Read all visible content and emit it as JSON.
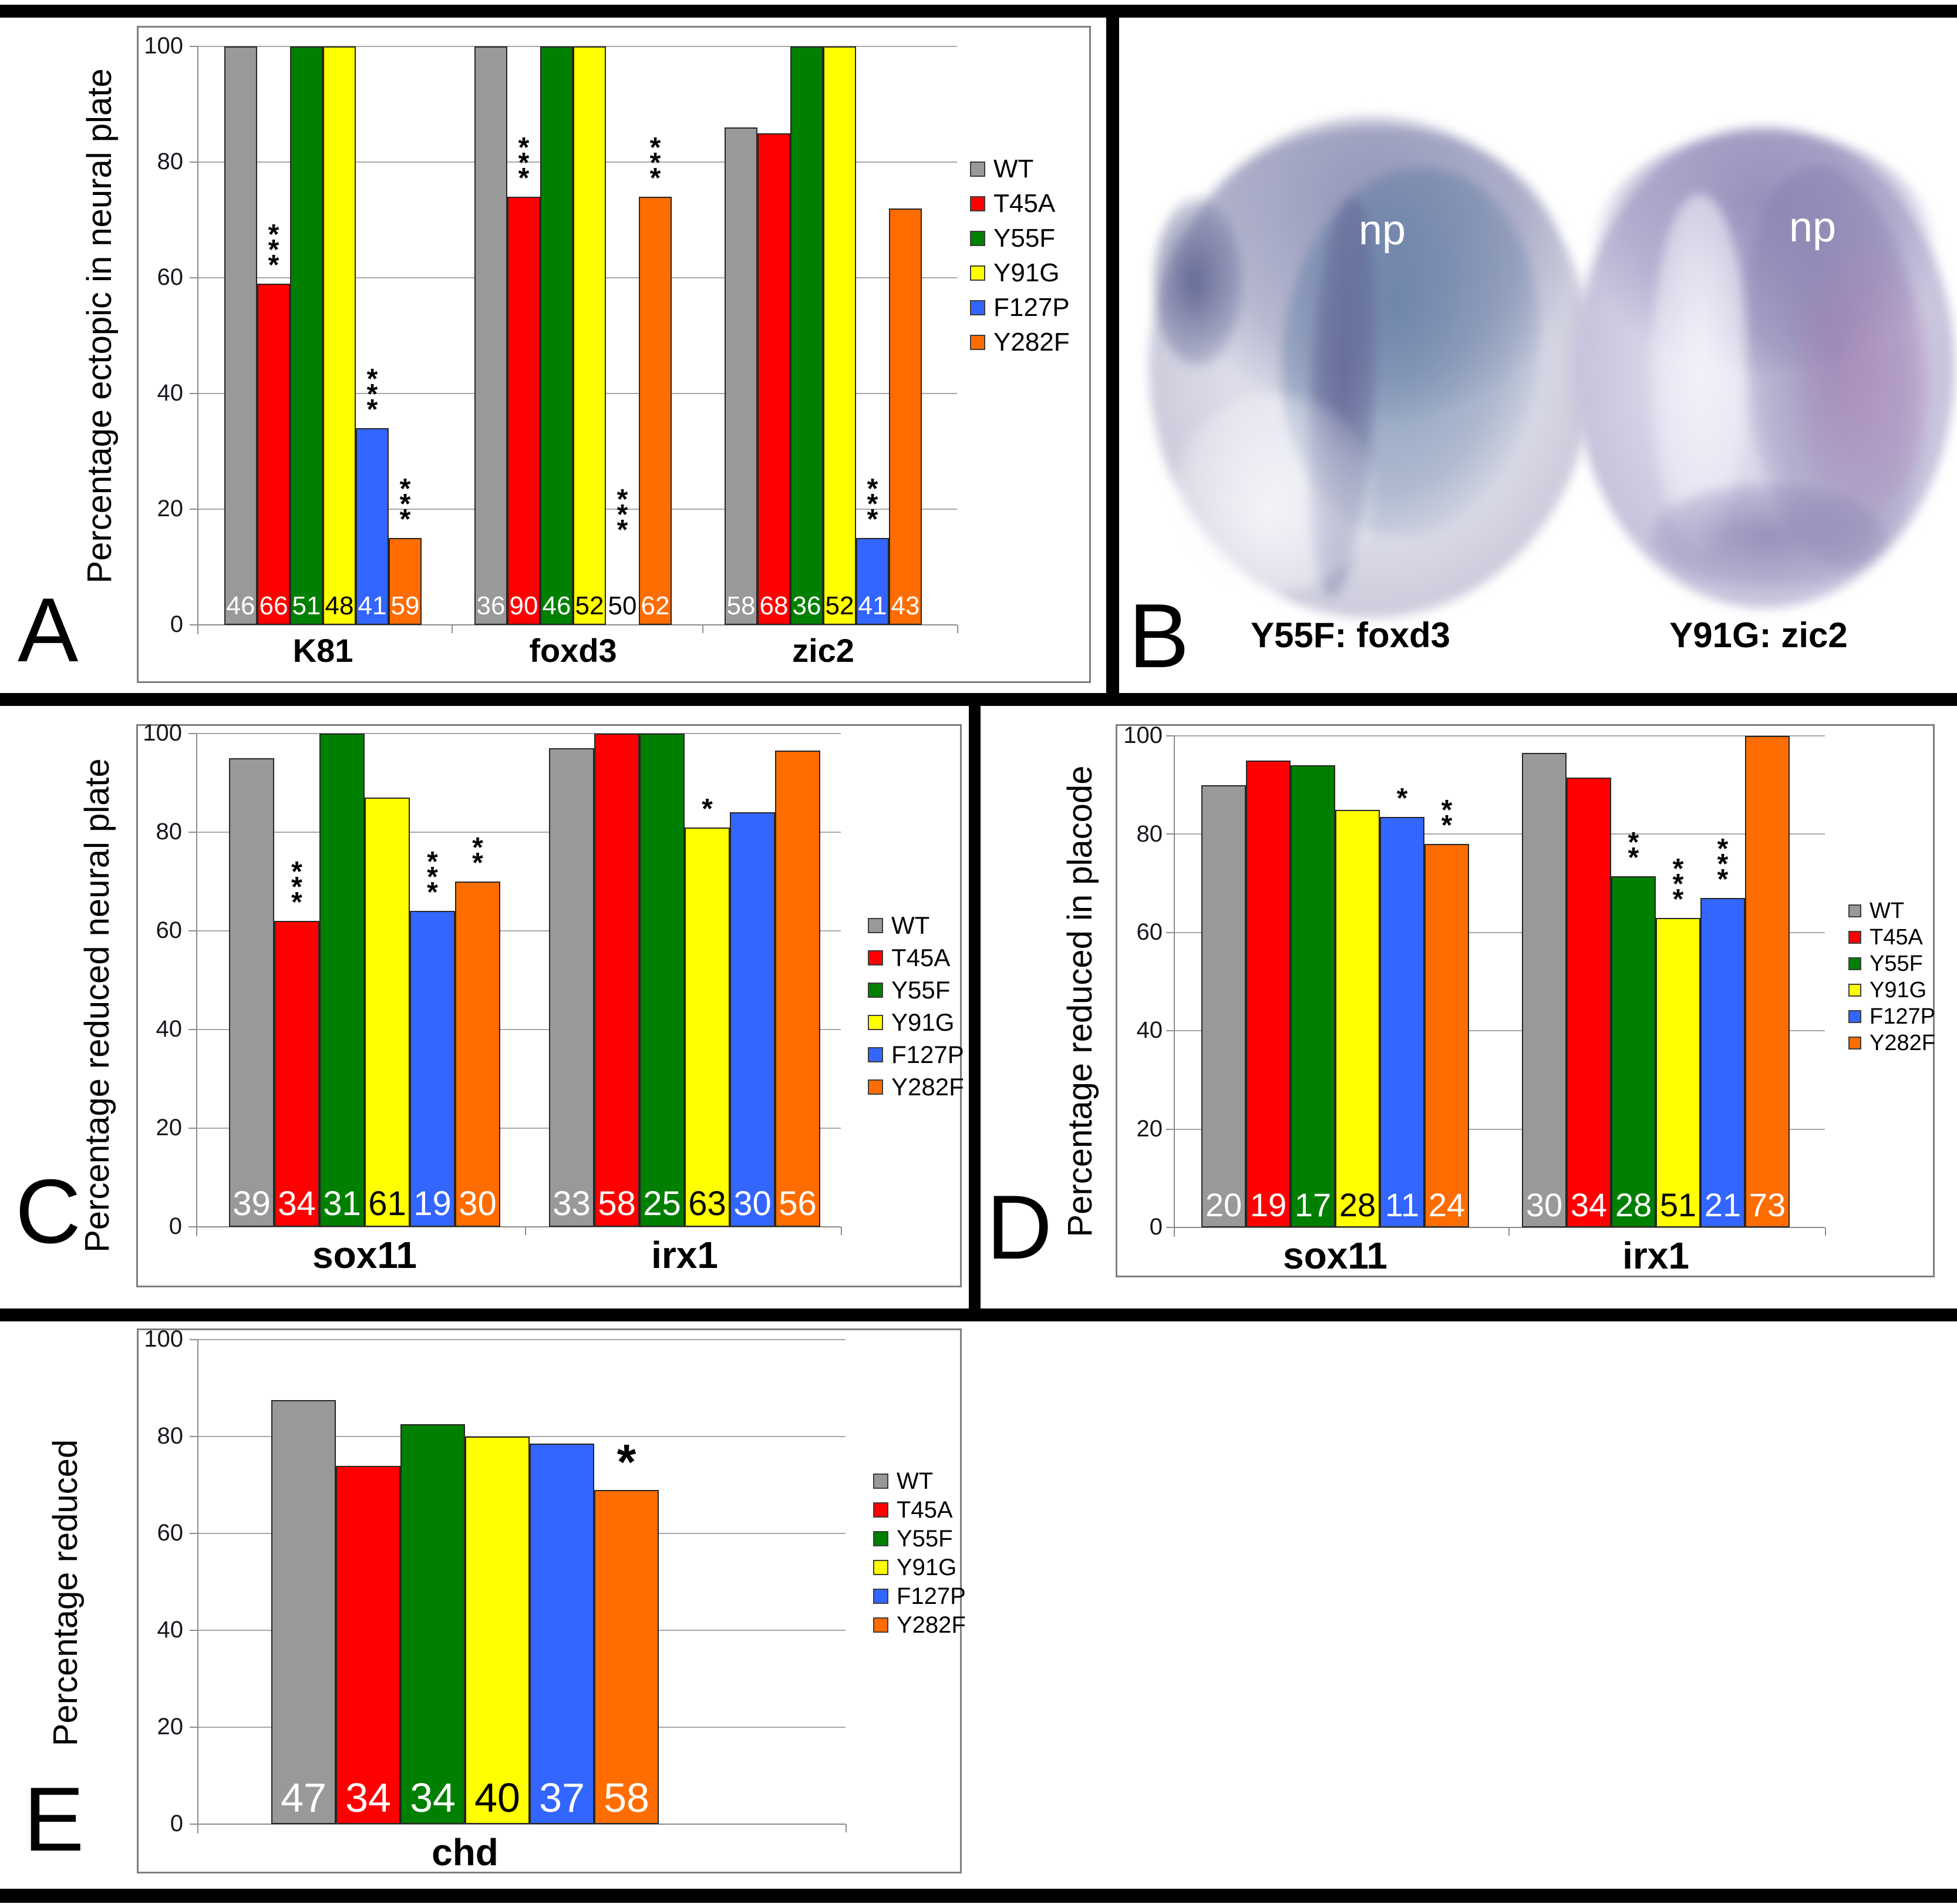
{
  "panels": {
    "a": {
      "letter": "A"
    },
    "b": {
      "letter": "B",
      "caption_left": "Y55F: foxd3",
      "caption_right": "Y91G: zic2",
      "np_label": "np",
      "stain_colors": {
        "foxd3_stain_blue": "#6882a6",
        "zic2_tissue_lavender": "#8c84b4"
      }
    },
    "c": {
      "letter": "C"
    },
    "d": {
      "letter": "D"
    },
    "e": {
      "letter": "E"
    }
  },
  "legend": {
    "entries": [
      {
        "label": "WT",
        "color": "#999999"
      },
      {
        "label": "T45A",
        "color": "#ff0000"
      },
      {
        "label": "Y55F",
        "color": "#008000"
      },
      {
        "label": "Y91G",
        "color": "#ffff00"
      },
      {
        "label": "F127P",
        "color": "#3366ff"
      },
      {
        "label": "Y282F",
        "color": "#ff6d00"
      }
    ]
  },
  "chart_data": [
    {
      "id": "A",
      "type": "bar",
      "ylabel": "Percentage ectopic in neural plate",
      "ylim": [
        0,
        100
      ],
      "yticks": [
        0,
        20,
        40,
        60,
        80,
        100
      ],
      "grid": true,
      "legend_position": "right",
      "series_names": [
        "WT",
        "T45A",
        "Y55F",
        "Y91G",
        "F127P",
        "Y282F"
      ],
      "groups": [
        {
          "label": "K81",
          "values": [
            100,
            59,
            100,
            100,
            34,
            15
          ],
          "n_labels": [
            46,
            66,
            51,
            48,
            41,
            59
          ],
          "significance": [
            null,
            "***",
            null,
            null,
            "***",
            "***"
          ]
        },
        {
          "label": "foxd3",
          "values": [
            100,
            74,
            100,
            100,
            0,
            74
          ],
          "n_labels": [
            36,
            90,
            46,
            52,
            50,
            62
          ],
          "significance": [
            null,
            "***",
            null,
            null,
            "***",
            "***"
          ]
        },
        {
          "label": "zic2",
          "values": [
            86,
            85,
            100,
            100,
            15,
            72
          ],
          "n_labels": [
            58,
            68,
            36,
            52,
            41,
            43
          ],
          "significance": [
            null,
            null,
            null,
            null,
            "***",
            null
          ]
        }
      ]
    },
    {
      "id": "C",
      "type": "bar",
      "ylabel": "Percentage reduced neural plate",
      "ylim": [
        0,
        100
      ],
      "yticks": [
        0,
        20,
        40,
        60,
        80,
        100
      ],
      "grid": true,
      "legend_position": "right",
      "series_names": [
        "WT",
        "T45A",
        "Y55F",
        "Y91G",
        "F127P",
        "Y282F"
      ],
      "groups": [
        {
          "label": "sox11",
          "values": [
            95,
            62,
            100,
            87,
            64,
            70
          ],
          "n_labels": [
            39,
            34,
            31,
            61,
            19,
            30
          ],
          "significance": [
            null,
            "***",
            null,
            null,
            "***",
            "**"
          ]
        },
        {
          "label": "irx1",
          "values": [
            97,
            100,
            100,
            81,
            84,
            96.5
          ],
          "n_labels": [
            33,
            58,
            25,
            63,
            30,
            56
          ],
          "significance": [
            null,
            null,
            null,
            "*",
            null,
            null
          ]
        }
      ]
    },
    {
      "id": "D",
      "type": "bar",
      "ylabel": "Percentage reduced in placode",
      "ylim": [
        0,
        100
      ],
      "yticks": [
        0,
        20,
        40,
        60,
        80,
        100
      ],
      "grid": true,
      "legend_position": "right",
      "series_names": [
        "WT",
        "T45A",
        "Y55F",
        "Y91G",
        "F127P",
        "Y282F"
      ],
      "groups": [
        {
          "label": "sox11",
          "values": [
            90,
            95,
            94,
            85,
            83.5,
            78
          ],
          "n_labels": [
            20,
            19,
            17,
            28,
            11,
            24
          ],
          "significance": [
            null,
            null,
            null,
            null,
            "*",
            "**"
          ]
        },
        {
          "label": "irx1",
          "values": [
            96.5,
            91.5,
            71.5,
            63,
            67,
            100
          ],
          "n_labels": [
            30,
            34,
            28,
            51,
            21,
            73
          ],
          "significance": [
            null,
            null,
            "**",
            "***",
            "***",
            null
          ]
        }
      ]
    },
    {
      "id": "E",
      "type": "bar",
      "ylabel": "Percentage reduced",
      "ylim": [
        0,
        100
      ],
      "yticks": [
        0,
        20,
        40,
        60,
        80,
        100
      ],
      "grid": true,
      "legend_position": "right",
      "series_names": [
        "WT",
        "T45A",
        "Y55F",
        "Y91G",
        "F127P",
        "Y282F"
      ],
      "groups": [
        {
          "label": "chd",
          "values": [
            87.5,
            74,
            82.5,
            80,
            78.5,
            69
          ],
          "n_labels": [
            47,
            34,
            34,
            40,
            37,
            58
          ],
          "significance": [
            null,
            null,
            null,
            null,
            null,
            "*"
          ]
        }
      ]
    }
  ]
}
